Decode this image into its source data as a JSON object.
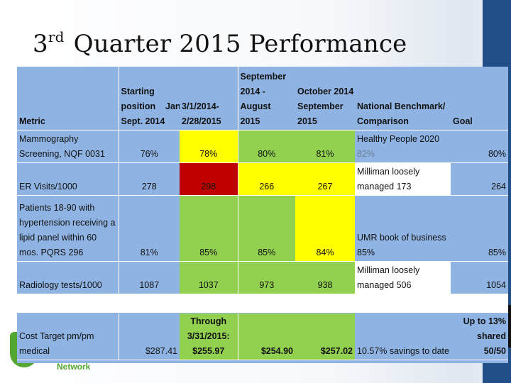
{
  "slide": {
    "title_sup": "rd",
    "title_num": "3",
    "title_rest": "Quarter 2015 Performance",
    "logo_text": "Network"
  },
  "table": {
    "header": {
      "metric": "Metric",
      "starting_line1": "Starting",
      "starting_line2": "position",
      "starting_line3": "Sept. 2014",
      "jan_line": "Jan.",
      "col2_line1": "3/1/2014-",
      "col2_line2": "2/28/2015",
      "col3_line1": "September",
      "col3_line2": "2014 - August",
      "col3_line3": "2015",
      "col4_line1": "October 2014 -",
      "col4_line2": "September",
      "col4_line3": "2015",
      "bench_line1": "National Benchmark/",
      "bench_line2": "Comparison",
      "goal": "Goal"
    },
    "rows": [
      {
        "metric_line1": "Mammography",
        "metric_line2": "Screening, NQF 0031",
        "starting": "76%",
        "period1": "78%",
        "period2": "80%",
        "period3": "81%",
        "bench_line1": "Healthy People 2020",
        "bench_line2": "82%",
        "goal": "80%"
      },
      {
        "metric_line1": "ER Visits/1000",
        "starting": "278",
        "period1": "298",
        "period2": "266",
        "period3": "267",
        "bench_line1": "Milliman loosely",
        "bench_line2": "managed 173",
        "goal": "264"
      },
      {
        "metric_line1": "Patients 18-90 with",
        "metric_line2": "hypertension receiving a",
        "metric_line3": "lipid panel within 60",
        "metric_line4": "mos.  PQRS 296",
        "starting": "81%",
        "period1": "85%",
        "period2": "85%",
        "period3": "84%",
        "bench_line1": "UMR book of business",
        "bench_line2": "85%",
        "goal": "85%"
      },
      {
        "metric_line1": "Radiology tests/1000",
        "starting": "1087",
        "period1": "1037",
        "period2": "973",
        "period3": "938",
        "bench_line1": "Milliman loosely",
        "bench_line2": "managed 506",
        "goal": "1054"
      },
      {
        "metric_line1": "Cost Target pm/pm",
        "metric_line2": "medical",
        "starting": "$287.41",
        "period1_line1": "Through",
        "period1_line2": "3/31/2015:",
        "period1_line3": "$255.97",
        "period2": "$254.90",
        "period3": "$257.02",
        "bench_line1": "10.57% savings to date",
        "goal_line1": "Up to 13%",
        "goal_line2": "shared 50/50"
      }
    ]
  },
  "colors": {
    "table_blue": "#8fb4e3",
    "yellow": "#ffff00",
    "red": "#c00000",
    "green": "#92d050",
    "side_bar": "#1f4f86",
    "logo_green": "#55a630"
  }
}
